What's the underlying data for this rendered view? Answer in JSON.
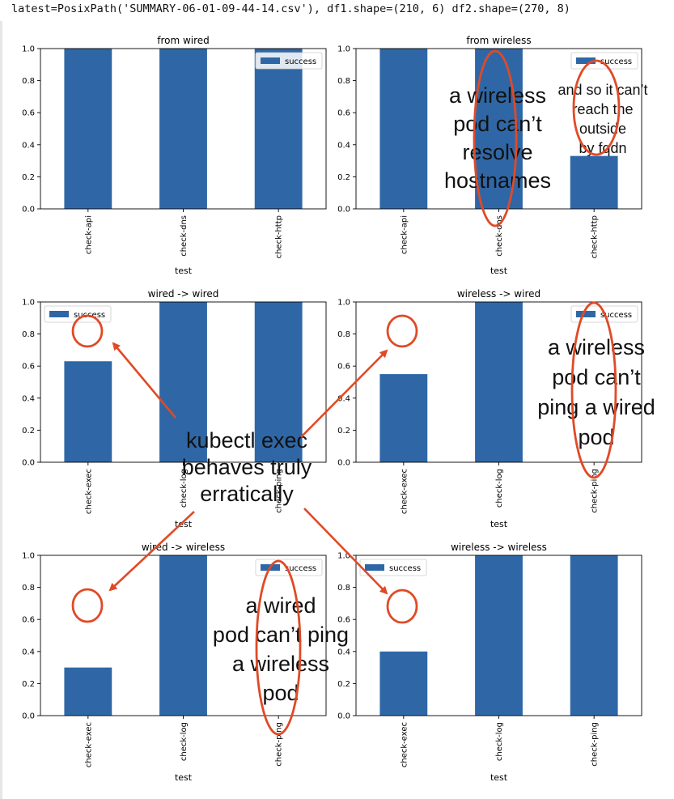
{
  "header": {
    "code_output": "latest=PosixPath('SUMMARY-06-01-09-44-14.csv'), df1.shape=(210, 6) df2.shape=(270, 8)"
  },
  "colors": {
    "bar": "#2f67a6",
    "annotation": "#e04a26"
  },
  "chart_data": [
    {
      "type": "bar",
      "title": "from wired",
      "xlabel": "test",
      "ylabel": "",
      "ylim": [
        0,
        1.0
      ],
      "yticks": [
        "0.0",
        "0.2",
        "0.4",
        "0.6",
        "0.8",
        "1.0"
      ],
      "legend": "top-right",
      "categories": [
        "check-api",
        "check-dns",
        "check-http"
      ],
      "series": [
        {
          "name": "success",
          "values": [
            1.0,
            1.0,
            1.0
          ]
        }
      ]
    },
    {
      "type": "bar",
      "title": "from wireless",
      "xlabel": "test",
      "ylabel": "",
      "ylim": [
        0,
        1.0
      ],
      "yticks": [
        "0.0",
        "0.2",
        "0.4",
        "0.6",
        "0.8",
        "1.0"
      ],
      "legend": "top-right",
      "categories": [
        "check-api",
        "check-dns",
        "check-http"
      ],
      "series": [
        {
          "name": "success",
          "values": [
            1.0,
            1.0,
            0.33
          ]
        }
      ]
    },
    {
      "type": "bar",
      "title": "wired -> wired",
      "xlabel": "test",
      "ylabel": "",
      "ylim": [
        0,
        1.0
      ],
      "yticks": [
        "0.0",
        "0.2",
        "0.4",
        "0.6",
        "0.8",
        "1.0"
      ],
      "legend": "top-left",
      "categories": [
        "check-exec",
        "check-log",
        "check-ping"
      ],
      "series": [
        {
          "name": "success",
          "values": [
            0.63,
            1.0,
            1.0
          ]
        }
      ]
    },
    {
      "type": "bar",
      "title": "wireless -> wired",
      "xlabel": "test",
      "ylabel": "",
      "ylim": [
        0,
        1.0
      ],
      "yticks": [
        "0.0",
        "0.2",
        "0.4",
        "0.6",
        "0.8",
        "1.0"
      ],
      "legend": "top-right",
      "categories": [
        "check-exec",
        "check-log",
        "check-ping"
      ],
      "series": [
        {
          "name": "success",
          "values": [
            0.55,
            1.0,
            0.0
          ]
        }
      ]
    },
    {
      "type": "bar",
      "title": "wired -> wireless",
      "xlabel": "test",
      "ylabel": "",
      "ylim": [
        0,
        1.0
      ],
      "yticks": [
        "0.0",
        "0.2",
        "0.4",
        "0.6",
        "0.8",
        "1.0"
      ],
      "legend": "top-right",
      "categories": [
        "check-exec",
        "check-log",
        "check-ping"
      ],
      "series": [
        {
          "name": "success",
          "values": [
            0.3,
            1.0,
            0.0
          ]
        }
      ]
    },
    {
      "type": "bar",
      "title": "wireless -> wireless",
      "xlabel": "test",
      "ylabel": "",
      "ylim": [
        0,
        1.0
      ],
      "yticks": [
        "0.0",
        "0.2",
        "0.4",
        "0.6",
        "0.8",
        "1.0"
      ],
      "legend": "top-left",
      "categories": [
        "check-exec",
        "check-log",
        "check-ping"
      ],
      "series": [
        {
          "name": "success",
          "values": [
            0.4,
            1.0,
            1.0
          ]
        }
      ]
    }
  ],
  "annotations": {
    "wireless_dns": [
      "a wireless",
      "pod can’t",
      "resolve",
      "hostnames"
    ],
    "wireless_http": [
      "and so it can’t",
      "reach the",
      "outside",
      "by fqdn"
    ],
    "wireless_ping_wired": [
      "a wireless",
      "pod can’t",
      "ping a wired",
      "pod"
    ],
    "kubectl_exec": [
      "kubectl exec",
      "behaves truly",
      "erratically"
    ],
    "wired_ping_wireless": [
      "a wired",
      "pod can’t ping",
      "a wireless",
      "pod"
    ]
  }
}
